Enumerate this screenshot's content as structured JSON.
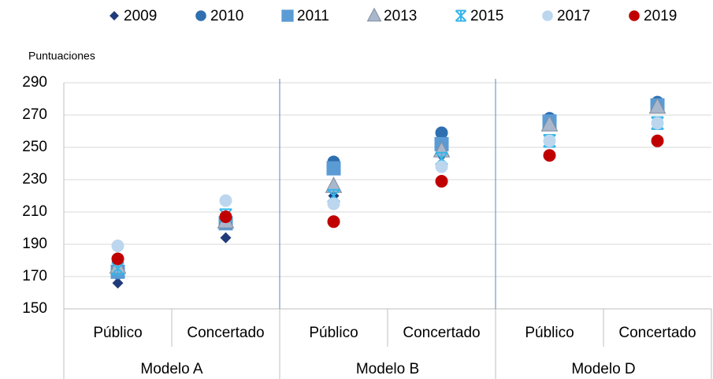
{
  "chart_data": {
    "type": "scatter",
    "y_axis_label": "Puntuaciones",
    "categories": [
      "Público",
      "Concertado",
      "Público",
      "Concertado",
      "Público",
      "Concertado"
    ],
    "groups": [
      "Modelo A",
      "Modelo B",
      "Modelo D"
    ],
    "ylim": [
      150,
      290
    ],
    "yticks": [
      150,
      170,
      190,
      210,
      230,
      250,
      270,
      290
    ],
    "grid": true,
    "series": [
      {
        "name": "2009",
        "color": "#1f3b7a",
        "marker": "diamond",
        "values": [
          166,
          194,
          220,
          245,
          255,
          265
        ]
      },
      {
        "name": "2010",
        "color": "#2e6fb0",
        "marker": "circle",
        "values": [
          172,
          203,
          241,
          259,
          268,
          278
        ]
      },
      {
        "name": "2011",
        "color": "#5b9bd5",
        "marker": "square",
        "values": [
          173,
          203,
          237,
          252,
          266,
          276
        ]
      },
      {
        "name": "2013",
        "color": "#a9b7cc",
        "marker": "triangle",
        "values": [
          176,
          204,
          226,
          248,
          264,
          275
        ]
      },
      {
        "name": "2015",
        "color": "#35b5ea",
        "marker": "asterisk",
        "values": [
          175,
          208,
          220,
          243,
          254,
          265
        ]
      },
      {
        "name": "2017",
        "color": "#bcd6ee",
        "marker": "circle",
        "values": [
          189,
          217,
          215,
          238,
          254,
          265
        ]
      },
      {
        "name": "2019",
        "color": "#c00000",
        "marker": "circle",
        "values": [
          181,
          207,
          204,
          229,
          245,
          254
        ]
      }
    ]
  }
}
